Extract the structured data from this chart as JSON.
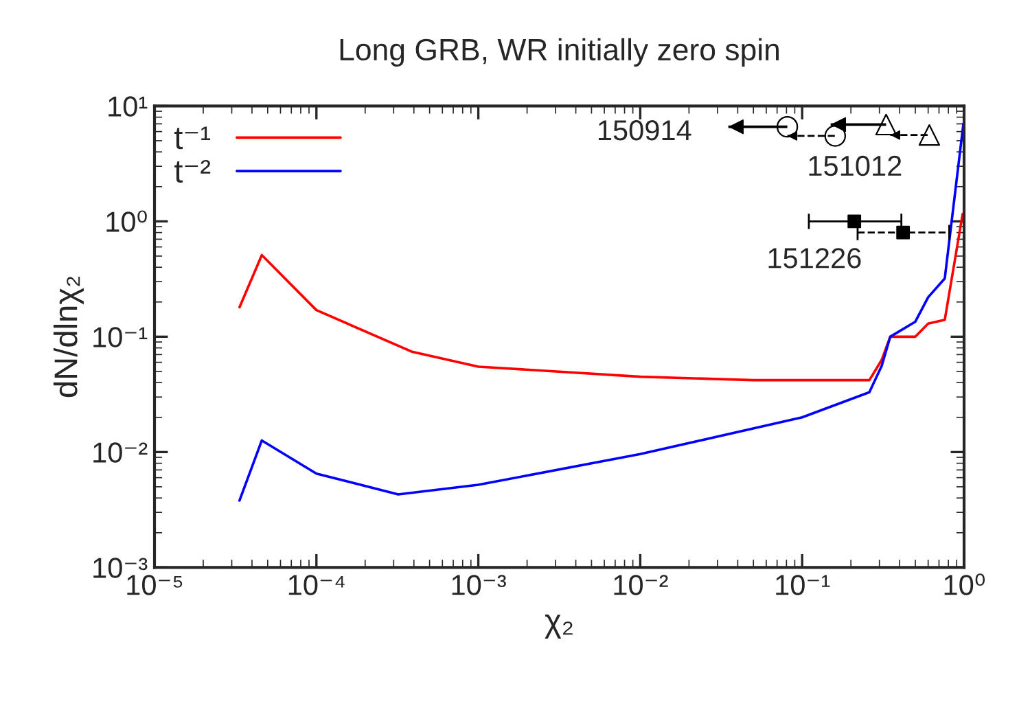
{
  "chart_data": {
    "type": "line",
    "title": "Long GRB, WR initially zero spin",
    "xlabel": "χ₂",
    "ylabel": "dN/dlnχ₂",
    "log": "xy",
    "grid": false,
    "legend": "top left",
    "xlim": [
      1e-05,
      1
    ],
    "ylim": [
      0.001,
      10
    ],
    "xticks": [
      {
        "value": 1e-05,
        "label": "10⁻⁵"
      },
      {
        "value": 0.0001,
        "label": "10⁻⁴"
      },
      {
        "value": 0.001,
        "label": "10⁻³"
      },
      {
        "value": 0.01,
        "label": "10⁻²"
      },
      {
        "value": 0.1,
        "label": "10⁻¹"
      },
      {
        "value": 1,
        "label": "10⁰"
      }
    ],
    "yticks": [
      {
        "value": 0.001,
        "label": "10⁻³"
      },
      {
        "value": 0.01,
        "label": "10⁻²"
      },
      {
        "value": 0.1,
        "label": "10⁻¹"
      },
      {
        "value": 1,
        "label": "10⁰"
      },
      {
        "value": 10,
        "label": "10¹"
      }
    ],
    "series": [
      {
        "name": "t⁻¹",
        "color": "#ff0000",
        "x": [
          3.35e-05,
          4.6e-05,
          0.0001,
          0.00039,
          0.001,
          0.01,
          0.05,
          0.26,
          0.31,
          0.35,
          0.5,
          0.6,
          0.76,
          0.98
        ],
        "values": [
          0.18,
          0.51,
          0.17,
          0.074,
          0.055,
          0.045,
          0.042,
          0.042,
          0.063,
          0.1,
          0.1,
          0.13,
          0.14,
          1.16
        ]
      },
      {
        "name": "t⁻²",
        "color": "#0000ff",
        "x": [
          3.35e-05,
          4.6e-05,
          0.0001,
          0.00032,
          0.001,
          0.01,
          0.1,
          0.26,
          0.31,
          0.35,
          0.5,
          0.6,
          0.76,
          0.99
        ],
        "values": [
          0.0038,
          0.0126,
          0.0065,
          0.0043,
          0.0052,
          0.0096,
          0.02,
          0.033,
          0.056,
          0.1,
          0.135,
          0.22,
          0.32,
          7
        ]
      },
      {
        "color": "#000000",
        "type": "scatter",
        "marker": "circle",
        "line_style": "solid",
        "x": [
          0.081
        ],
        "values": [
          6.6
        ],
        "xerrors": [
          [
            0.035,
            0.081
          ]
        ]
      },
      {
        "color": "#000000",
        "type": "scatter",
        "marker": "triangle",
        "line_style": "solid",
        "x": [
          0.33
        ],
        "values": [
          6.9
        ],
        "xerrors": [
          [
            0.15,
            0.33
          ]
        ]
      },
      {
        "color": "#000000",
        "type": "scatter",
        "marker": "circle",
        "line_style": "dashed",
        "x": [
          0.16
        ],
        "values": [
          5.5
        ],
        "xerrors": [
          [
            0.081,
            0.16
          ]
        ]
      },
      {
        "color": "#000000",
        "type": "scatter",
        "marker": "triangle",
        "line_style": "dashed",
        "x": [
          0.61
        ],
        "values": [
          5.6
        ],
        "xerrors": [
          [
            0.35,
            0.61
          ]
        ]
      },
      {
        "color": "#000000",
        "type": "scatter",
        "marker": "square",
        "line_style": "solid",
        "x": [
          0.21
        ],
        "values": [
          1.0
        ],
        "xerrors": [
          [
            0.11,
            0.41
          ]
        ]
      },
      {
        "color": "#000000",
        "type": "scatter",
        "marker": "square",
        "line_style": "dashed",
        "x": [
          0.42
        ],
        "values": [
          0.8
        ],
        "xerrors": [
          [
            0.22,
            0.81
          ]
        ]
      }
    ],
    "annotations": [
      "150914",
      "151012",
      "151226"
    ]
  }
}
